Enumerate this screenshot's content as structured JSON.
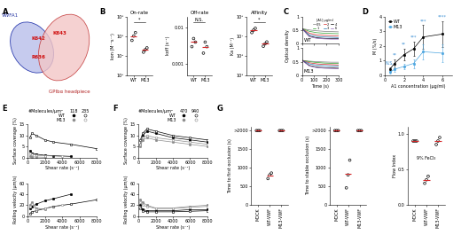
{
  "chart_data": [
    {
      "panel": "A",
      "type": "diagram",
      "domains": [
        "VWFA1",
        "GPIbα headpiece"
      ],
      "residues": [
        "K642",
        "K643",
        "R636"
      ]
    },
    {
      "panel": "B",
      "type": "dot",
      "title": "On-rate",
      "ylabel": "kon (M⁻¹s⁻¹)",
      "categories": [
        "WT",
        "M13"
      ],
      "values": [
        [
          60000,
          100000,
          150000
        ],
        [
          15000,
          20000,
          25000
        ]
      ],
      "means": [
        100000,
        20000
      ],
      "color": "#000000",
      "log": "y",
      "ylim": [
        1000,
        1000000
      ],
      "yticks": [
        {
          "value": 1000,
          "label": "10³"
        },
        {
          "value": 10000,
          "label": "10⁴"
        },
        {
          "value": 100000,
          "label": "10⁵"
        },
        {
          "value": 1000000,
          "label": "10⁶"
        }
      ],
      "annotation": "*"
    },
    {
      "type": "dot",
      "title": "Off-rate",
      "ylabel": "koff (s⁻¹)",
      "categories": [
        "WT",
        "M13"
      ],
      "values": [
        [
          0.003,
          0.005,
          0.004
        ],
        [
          0.002,
          0.004,
          0.003
        ]
      ],
      "means": [
        0.004,
        0.003
      ],
      "color": "#000000",
      "log": "y",
      "ylim": [
        0.0005,
        0.02
      ],
      "yticks": [
        0.001,
        0.01
      ],
      "annotation": "N.S."
    },
    {
      "type": "dot",
      "title": "Affinity",
      "ylabel": "Ka (M⁻¹)",
      "categories": [
        "WT",
        "M13"
      ],
      "values": [
        [
          15000000,
          20000000,
          25000000
        ],
        [
          3000000,
          4000000,
          5000000
        ]
      ],
      "means": [
        20000000,
        4000000
      ],
      "color": "#000000",
      "log": "y",
      "ylim": [
        100000,
        100000000
      ],
      "yticks": [
        {
          "value": 100000,
          "label": "10⁵"
        },
        {
          "value": 1000000,
          "label": "10⁶"
        },
        {
          "value": 10000000,
          "label": "10⁷"
        },
        {
          "value": 100000000,
          "label": "10⁸"
        }
      ],
      "annotation": "*"
    },
    {
      "panel": "C",
      "type": "line",
      "label": "WT",
      "ylabel": "Optical density",
      "x": [
        0,
        60,
        120,
        180,
        240,
        300
      ],
      "xlim": [
        0,
        300
      ],
      "xticks": [
        0,
        100,
        200,
        300
      ],
      "ylim": [
        0,
        1
      ],
      "yticks": [
        0,
        0.5,
        1
      ],
      "tick_labels": "y",
      "legend": "upper right",
      "legend_title": "[A1] µg/ml",
      "series": [
        {
          "name": "0.5",
          "color": "#7f7f7f",
          "values": [
            0.55,
            0.5,
            0.47,
            0.45,
            0.44,
            0.43
          ]
        },
        {
          "name": "1",
          "color": "#2ca02c",
          "values": [
            0.55,
            0.45,
            0.4,
            0.38,
            0.37,
            0.36
          ]
        },
        {
          "name": "2",
          "color": "#d62728",
          "values": [
            0.55,
            0.38,
            0.32,
            0.3,
            0.29,
            0.28
          ]
        },
        {
          "name": "3",
          "color": "#1f77b4",
          "values": [
            0.55,
            0.32,
            0.26,
            0.24,
            0.23,
            0.22
          ]
        },
        {
          "name": "4",
          "color": "#000000",
          "values": [
            0.55,
            0.27,
            0.21,
            0.19,
            0.18,
            0.18
          ]
        },
        {
          "name": "6",
          "color": "#9467bd",
          "values": [
            0.55,
            0.25,
            0.19,
            0.17,
            0.16,
            0.16
          ]
        }
      ]
    },
    {
      "type": "line",
      "label": "M13",
      "xlabel": "Time (s)",
      "x": [
        0,
        60,
        120,
        180,
        240,
        300
      ],
      "xlim": [
        0,
        300
      ],
      "xticks": [
        0,
        100,
        200,
        300
      ],
      "ylim": [
        0,
        1
      ],
      "yticks": [
        0,
        0.5,
        1
      ],
      "series": [
        {
          "color": "#7f7f7f",
          "values": [
            0.55,
            0.52,
            0.5,
            0.49,
            0.48,
            0.48
          ]
        },
        {
          "color": "#2ca02c",
          "values": [
            0.55,
            0.5,
            0.47,
            0.45,
            0.44,
            0.44
          ]
        },
        {
          "color": "#d62728",
          "values": [
            0.55,
            0.46,
            0.42,
            0.4,
            0.39,
            0.38
          ]
        },
        {
          "color": "#1f77b4",
          "values": [
            0.55,
            0.42,
            0.37,
            0.35,
            0.34,
            0.33
          ]
        },
        {
          "color": "#000000",
          "values": [
            0.55,
            0.36,
            0.3,
            0.28,
            0.27,
            0.26
          ]
        },
        {
          "color": "#9467bd",
          "values": [
            0.55,
            0.34,
            0.28,
            0.26,
            0.25,
            0.24
          ]
        }
      ]
    },
    {
      "panel": "D",
      "type": "line",
      "xlabel": "A1 concentration (µg/ml)",
      "ylabel": "M (%/s)",
      "x": [
        0.5,
        1,
        2,
        3,
        4,
        6
      ],
      "xlim": [
        0,
        7
      ],
      "xticks": [
        0,
        2,
        4,
        6
      ],
      "ylim": [
        0,
        4
      ],
      "yticks": [
        0,
        1,
        2,
        3,
        4
      ],
      "legend": "upper left",
      "series": [
        {
          "name": "WT",
          "color": "#000000",
          "marker": "circle",
          "values": [
            0.4,
            0.8,
            1.4,
            1.8,
            2.6,
            2.8
          ],
          "errors": [
            0.15,
            0.3,
            0.4,
            0.5,
            0.8,
            0.9
          ]
        },
        {
          "name": "M13",
          "color": "#4da6e0",
          "marker": "circle",
          "values": [
            0.2,
            0.4,
            0.6,
            0.8,
            1.6,
            1.5
          ],
          "errors": [
            0.1,
            0.15,
            0.2,
            0.3,
            0.5,
            0.6
          ]
        }
      ],
      "annotations": [
        {
          "x": 0.5,
          "text": "N.S."
        },
        {
          "x": 1,
          "text": "**"
        },
        {
          "x": 2,
          "text": "**"
        },
        {
          "x": 3,
          "text": "***"
        },
        {
          "x": 4,
          "text": "***"
        },
        {
          "x": 6,
          "text": "****"
        }
      ]
    },
    {
      "panel": "E",
      "type": "line",
      "xlabel": "Shear rate (s⁻¹)",
      "ylabel": "Surface coverage (%)",
      "xlim": [
        0,
        8000
      ],
      "xticks": [
        0,
        2000,
        4000,
        6000,
        8000
      ],
      "ylim": [
        0,
        15
      ],
      "yticks": [
        0,
        5,
        10,
        15
      ],
      "legend_title": "#Molecules/µm²",
      "series": [
        {
          "group": "WT",
          "density": 118,
          "color": "#000000",
          "marker": "circle",
          "x": [
            250,
            500,
            1000,
            2000,
            3000,
            5000
          ],
          "values": [
            3,
            2,
            1.5,
            1,
            0.8,
            0.5
          ]
        },
        {
          "group": "WT",
          "density": 235,
          "color": "#000000",
          "marker": "open_circle",
          "x": [
            250,
            500,
            1000,
            2000,
            3000,
            5000,
            8000
          ],
          "values": [
            9,
            11,
            10,
            8,
            7,
            6,
            4
          ]
        },
        {
          "group": "M13",
          "density": 118,
          "color": "#8c8c8c",
          "marker": "circle",
          "x": [
            250,
            500,
            1000,
            2000
          ],
          "values": [
            0.5,
            0.3,
            0.2,
            0.1
          ]
        },
        {
          "group": "M13",
          "density": 235,
          "color": "#8c8c8c",
          "marker": "open_circle",
          "x": [
            250,
            500,
            1000,
            2000,
            4000
          ],
          "values": [
            2,
            1.5,
            1,
            0.8,
            0.5
          ]
        }
      ]
    },
    {
      "type": "line",
      "xlabel": "Shear rate (s⁻¹)",
      "ylabel": "Rolling velocity (µm/s)",
      "xlim": [
        0,
        8000
      ],
      "xticks": [
        0,
        2000,
        4000,
        6000,
        8000
      ],
      "ylim": [
        0,
        60
      ],
      "yticks": [
        0,
        20,
        40,
        60
      ],
      "series": [
        {
          "color": "#000000",
          "marker": "circle",
          "x": [
            250,
            500,
            1000,
            2000,
            3000,
            5000
          ],
          "values": [
            15,
            18,
            22,
            28,
            32,
            40
          ]
        },
        {
          "color": "#000000",
          "marker": "open_circle",
          "x": [
            250,
            500,
            1000,
            2000,
            3000,
            5000,
            8000
          ],
          "values": [
            5,
            8,
            10,
            14,
            18,
            22,
            30
          ]
        },
        {
          "color": "#8c8c8c",
          "marker": "circle",
          "x": [
            250,
            500,
            1000,
            2000
          ],
          "values": [
            20,
            25,
            15,
            12
          ]
        },
        {
          "color": "#8c8c8c",
          "marker": "open_circle",
          "x": [
            250,
            500,
            1000,
            2000,
            4000
          ],
          "values": [
            18,
            22,
            12,
            14,
            20
          ]
        }
      ]
    },
    {
      "panel": "F",
      "type": "line",
      "xlabel": "Shear rate (s⁻¹)",
      "ylabel": "Surface coverage (%)",
      "xlim": [
        0,
        8000
      ],
      "xticks": [
        0,
        2000,
        4000,
        6000,
        8000
      ],
      "ylim": [
        0,
        15
      ],
      "yticks": [
        0,
        5,
        10,
        15
      ],
      "legend_title": "#Molecules/µm²",
      "series": [
        {
          "group": "WT",
          "density": 470,
          "color": "#000000",
          "marker": "circle",
          "x": [
            250,
            500,
            1000,
            2000,
            4000,
            6000,
            8000
          ],
          "values": [
            6,
            10,
            12,
            11,
            9,
            8,
            7
          ]
        },
        {
          "group": "WT",
          "density": 940,
          "color": "#000000",
          "marker": "open_circle",
          "x": [
            250,
            500,
            1000,
            2000,
            4000,
            6000,
            8000
          ],
          "values": [
            8,
            11,
            13,
            12,
            10,
            9,
            8
          ]
        },
        {
          "group": "M13",
          "density": 470,
          "color": "#8c8c8c",
          "marker": "circle",
          "x": [
            250,
            500,
            1000,
            2000,
            4000,
            6000,
            8000
          ],
          "values": [
            5,
            8,
            9,
            8,
            7,
            6,
            5
          ]
        },
        {
          "group": "M13",
          "density": 940,
          "color": "#8c8c8c",
          "marker": "open_circle",
          "x": [
            250,
            500,
            1000,
            2000,
            4000,
            6000,
            8000
          ],
          "values": [
            6,
            9,
            10,
            9,
            8,
            7,
            6
          ]
        }
      ]
    },
    {
      "type": "line",
      "xlabel": "Shear rate (s⁻¹)",
      "ylabel": "Rolling velocity (µm/s)",
      "xlim": [
        0,
        8000
      ],
      "xticks": [
        0,
        2000,
        4000,
        6000,
        8000
      ],
      "ylim": [
        0,
        60
      ],
      "yticks": [
        0,
        20,
        40,
        60
      ],
      "series": [
        {
          "color": "#000000",
          "marker": "circle",
          "x": [
            250,
            500,
            1000,
            2000,
            4000,
            6000,
            8000
          ],
          "values": [
            20,
            12,
            10,
            10,
            10,
            12,
            12
          ]
        },
        {
          "color": "#000000",
          "marker": "open_circle",
          "x": [
            250,
            500,
            1000,
            2000,
            4000,
            6000,
            8000
          ],
          "values": [
            15,
            10,
            8,
            8,
            8,
            9,
            10
          ]
        },
        {
          "color": "#8c8c8c",
          "marker": "circle",
          "x": [
            250,
            500,
            1000,
            2000,
            4000,
            6000,
            8000
          ],
          "values": [
            30,
            25,
            20,
            15,
            15,
            18,
            20
          ]
        },
        {
          "color": "#8c8c8c",
          "marker": "open_circle",
          "x": [
            250,
            500,
            1000,
            2000,
            4000,
            6000,
            8000
          ],
          "values": [
            25,
            20,
            18,
            14,
            14,
            16,
            18
          ]
        }
      ]
    },
    {
      "panel": "G",
      "type": "dot",
      "ylabel": "Time to first occlusion (s)",
      "categories": [
        "MOCK",
        "WT-VWF",
        "M13-VWF"
      ],
      "values": [
        [
          2000,
          2000,
          2000
        ],
        [
          700,
          800,
          850
        ],
        [
          2000,
          2000,
          2000
        ]
      ],
      "means": [
        2000,
        783,
        2000
      ],
      "color": "#000000",
      "ylim": [
        0,
        2100
      ],
      "yticks": [
        0,
        500,
        1000,
        1500,
        {
          "value": 2000,
          "label": ">2000"
        }
      ]
    },
    {
      "type": "dot",
      "ylabel": "Time to stable occlusion (s)",
      "categories": [
        "MOCK",
        "WT-VWF",
        "M13-VWF"
      ],
      "values": [
        [
          2000,
          2000,
          2000
        ],
        [
          450,
          800,
          1200
        ],
        [
          2000,
          2000,
          2000
        ]
      ],
      "means": [
        2000,
        820,
        2000
      ],
      "color": "#000000",
      "ylim": [
        0,
        2100
      ],
      "yticks": [
        0,
        500,
        1000,
        1500,
        {
          "value": 2000,
          "label": ">2000"
        }
      ]
    },
    {
      "type": "dot",
      "ylabel": "Flow Index",
      "categories": [
        "MOCK",
        "WT-VWF",
        "M13-VWF"
      ],
      "values": [
        [
          0.9,
          0.9,
          0.9
        ],
        [
          0.3,
          0.35,
          0.4
        ],
        [
          0.85,
          0.9,
          0.95
        ]
      ],
      "means": [
        0.9,
        0.35,
        0.9
      ],
      "color": "#000000",
      "ylim": [
        0,
        1.1
      ],
      "yticks": [
        {
          "value": 0,
          "label": "0.0"
        },
        0.5,
        {
          "value": 1,
          "label": "1.0"
        }
      ],
      "note": "9% FeCl₃"
    }
  ]
}
